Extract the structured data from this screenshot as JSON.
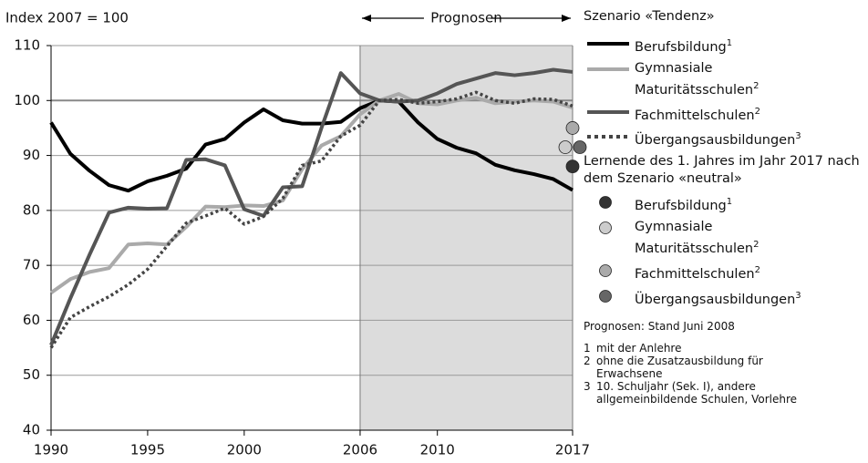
{
  "chart_data": {
    "type": "line",
    "y_axis_title": "Index 2007 = 100",
    "forecast_label": "Prognosen",
    "forecast_range": [
      2006,
      2017
    ],
    "xlim": [
      1990,
      2017
    ],
    "ylim": [
      40,
      110
    ],
    "xticks": [
      1990,
      1995,
      2000,
      2006,
      2010,
      2017
    ],
    "yticks": [
      40,
      50,
      60,
      70,
      80,
      90,
      100,
      110
    ],
    "grid": true,
    "legend_title": "Szenario «Tendenz»",
    "x": [
      1990,
      1991,
      1992,
      1993,
      1994,
      1995,
      1996,
      1997,
      1998,
      1999,
      2000,
      2001,
      2002,
      2003,
      2004,
      2005,
      2006,
      2007,
      2008,
      2009,
      2010,
      2011,
      2012,
      2013,
      2014,
      2015,
      2016,
      2017
    ],
    "series": [
      {
        "name": "Berufsbildung",
        "footnote": "1",
        "color": "#000000",
        "dash": false,
        "values": [
          96,
          90.3,
          87.2,
          84.6,
          83.6,
          85.3,
          86.3,
          87.6,
          92,
          93,
          96,
          98.4,
          96.4,
          95.8,
          95.8,
          96.1,
          98.6,
          100,
          99.8,
          96,
          93,
          91.4,
          90.4,
          88.3,
          87.3,
          86.6,
          85.7,
          83.7
        ]
      },
      {
        "name": "Gymnasiale Maturitätsschulen",
        "footnote": "2",
        "color": "#aaaaaa",
        "dash": false,
        "values": [
          65,
          67.5,
          68.8,
          69.5,
          73.8,
          74,
          73.8,
          77,
          80.7,
          80.6,
          80.9,
          80.8,
          81.8,
          87.5,
          91.8,
          93.5,
          97.5,
          100,
          101.2,
          99.5,
          99.3,
          100,
          100.5,
          99.5,
          99.8,
          100,
          99.8,
          98.7
        ]
      },
      {
        "name": "Fachmittelschulen",
        "footnote": "2",
        "color": "#555555",
        "dash": false,
        "values": [
          55.5,
          64,
          72,
          79.6,
          80.5,
          80.3,
          80.4,
          89.2,
          89.3,
          88.2,
          80.2,
          79,
          84.2,
          84.4,
          95,
          105,
          101.3,
          100,
          99.8,
          100,
          101.3,
          103,
          104,
          105,
          104.6,
          105,
          105.6,
          105.2
        ]
      },
      {
        "name": "Übergangsausbildungen",
        "footnote": "3",
        "color": "#444444",
        "dash": true,
        "values": [
          55,
          60.5,
          62.5,
          64.3,
          66.5,
          69.3,
          73.5,
          77.7,
          79,
          80.4,
          77.5,
          78.9,
          82.2,
          88.2,
          89,
          93.5,
          95.5,
          100,
          100.2,
          99.5,
          99.8,
          100.3,
          101.5,
          100,
          99.5,
          100.3,
          100.2,
          99
        ]
      }
    ],
    "scenario_neutral": {
      "title": "Lernende des 1. Jahres im Jahr 2017 nach dem Szenario «neutral»",
      "x": 2017,
      "series": [
        {
          "name": "Berufsbildung",
          "footnote": "1",
          "color": "#333333",
          "value": 88
        },
        {
          "name": "Gymnasiale Maturitätsschulen",
          "footnote": "2",
          "color": "#cccccc",
          "value": 91.5
        },
        {
          "name": "Fachmittelschulen",
          "footnote": "2",
          "color": "#aaaaaa",
          "value": 95
        },
        {
          "name": "Übergangsausbildungen",
          "footnote": "3",
          "color": "#666666",
          "value": 91.5
        }
      ]
    },
    "source_note": "Prognosen: Stand Juni 2008",
    "footnotes": [
      {
        "marker": "1",
        "text": "mit der Anlehre"
      },
      {
        "marker": "2",
        "text": "ohne die Zusatzausbildung für Erwachsene"
      },
      {
        "marker": "3",
        "text": "10. Schuljahr (Sek. I), andere allgemeinbildende Schulen, Vorlehre"
      }
    ]
  }
}
